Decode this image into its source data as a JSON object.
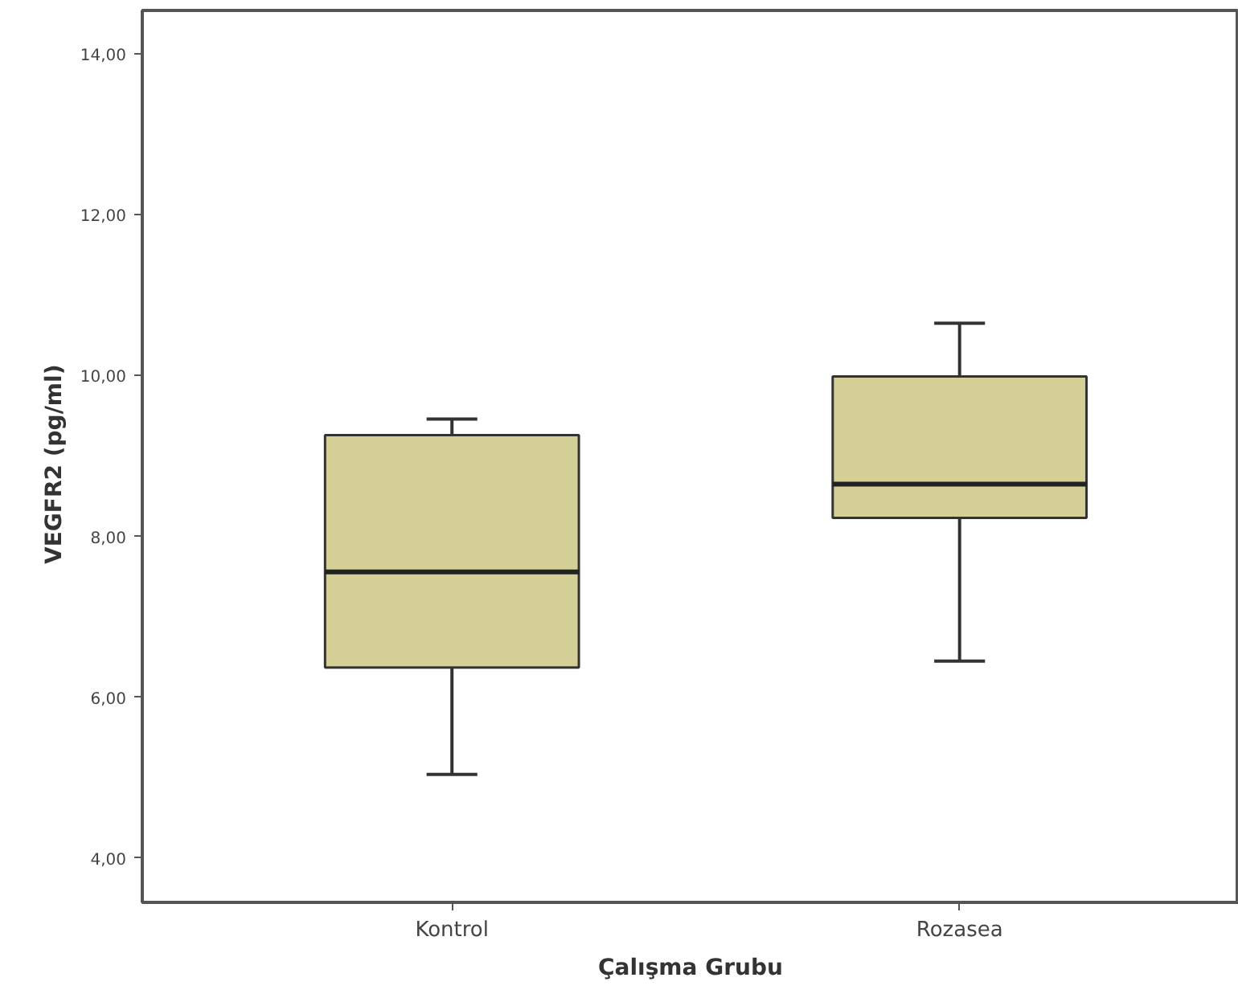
{
  "chart_data": {
    "type": "box",
    "xlabel": "Çalışma Grubu",
    "ylabel": "VEGFR2   (pg/ml)",
    "categories": [
      "Kontrol",
      "Rozasea"
    ],
    "boxes": [
      {
        "low": 5.04,
        "q1": 6.37,
        "median": 7.56,
        "q3": 9.26,
        "high": 9.46
      },
      {
        "low": 6.45,
        "q1": 8.23,
        "median": 8.65,
        "q3": 9.99,
        "high": 10.65
      }
    ],
    "color": "#d4cf97",
    "ylim": [
      3.45,
      14.54
    ],
    "yticks": [
      {
        "value": 4,
        "label": "4,00"
      },
      {
        "value": 6,
        "label": "6,00"
      },
      {
        "value": 8,
        "label": "8,00"
      },
      {
        "value": 10,
        "label": "10,00"
      },
      {
        "value": 12,
        "label": "12,00"
      },
      {
        "value": 14,
        "label": "14,00"
      }
    ],
    "grid": false
  }
}
